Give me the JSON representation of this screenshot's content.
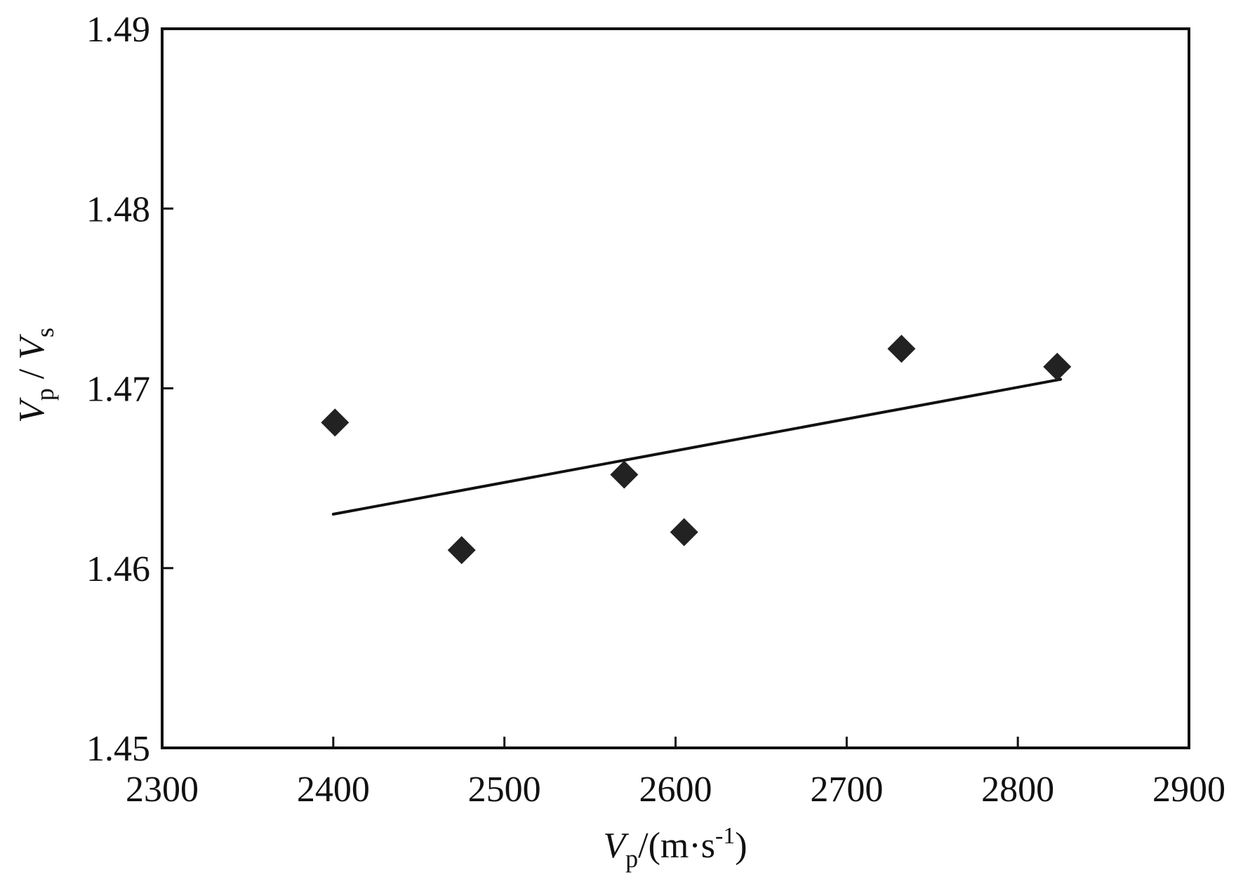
{
  "chart_data": {
    "type": "scatter",
    "title": "",
    "xlabel": {
      "main": "V",
      "sub": "p",
      "unit_open": "/(m·s",
      "unit_sup": "-1",
      "unit_close": ")"
    },
    "ylabel": {
      "main1": "V",
      "sub1": "p",
      "sep": " / ",
      "main2": "V",
      "sub2": "s"
    },
    "xlim": [
      2300,
      2900
    ],
    "ylim": [
      1.45,
      1.49
    ],
    "x_ticks": [
      2300,
      2400,
      2500,
      2600,
      2700,
      2800,
      2900
    ],
    "y_ticks": [
      1.45,
      1.46,
      1.47,
      1.48,
      1.49
    ],
    "x_tick_labels": [
      "2300",
      "2400",
      "2500",
      "2600",
      "2700",
      "2800",
      "2900"
    ],
    "y_tick_labels": [
      "1.45",
      "1.46",
      "1.47",
      "1.48",
      "1.49"
    ],
    "grid": false,
    "marker_color": "#222222",
    "line_color": "#111111",
    "series": [
      {
        "kind": "points",
        "marker": "diamond",
        "x": [
          2401,
          2475,
          2570,
          2605,
          2732,
          2823
        ],
        "y": [
          1.4681,
          1.461,
          1.4652,
          1.462,
          1.4722,
          1.4712
        ]
      },
      {
        "kind": "fit-line",
        "x": [
          2400,
          2825
        ],
        "y": [
          1.463,
          1.4705
        ]
      }
    ]
  }
}
